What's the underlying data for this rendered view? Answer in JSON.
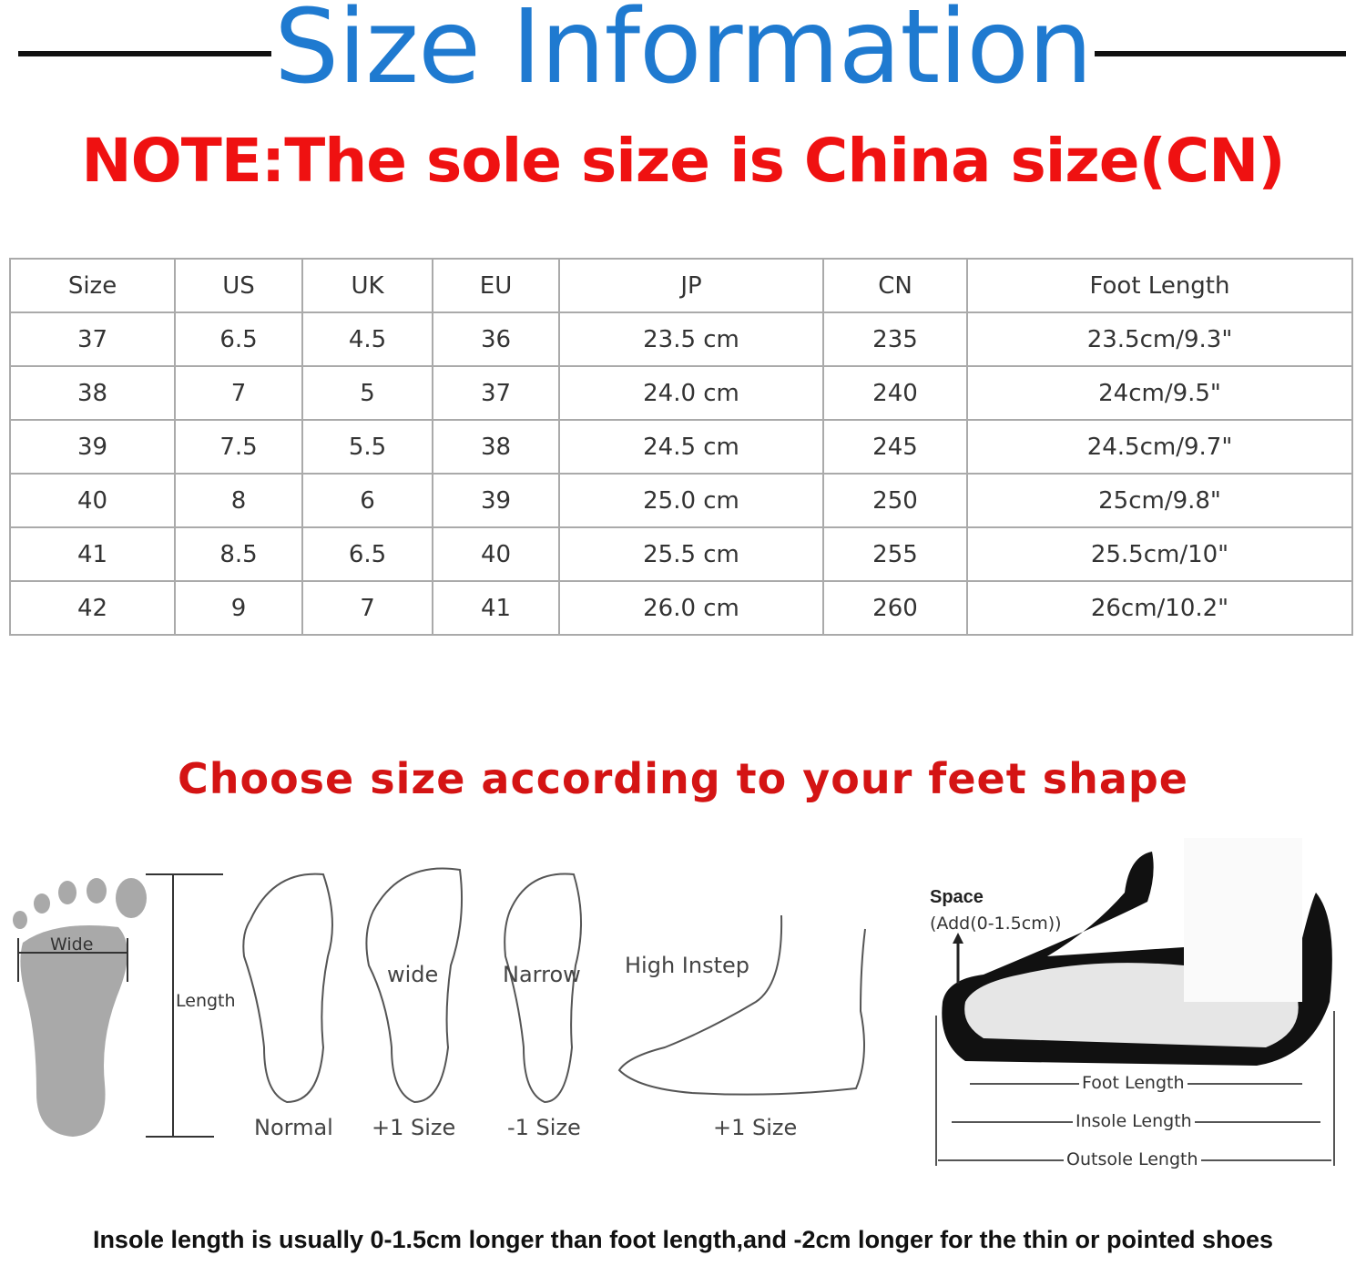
{
  "title": "Size Information",
  "note": "NOTE:The sole size is China size(CN)",
  "table": {
    "headers": [
      "Size",
      "US",
      "UK",
      "EU",
      "JP",
      "CN",
      "Foot Length"
    ],
    "rows": [
      [
        "37",
        "6.5",
        "4.5",
        "36",
        "23.5 cm",
        "235",
        "23.5cm/9.3\""
      ],
      [
        "38",
        "7",
        "5",
        "37",
        "24.0 cm",
        "240",
        "24cm/9.5\""
      ],
      [
        "39",
        "7.5",
        "5.5",
        "38",
        "24.5 cm",
        "245",
        "24.5cm/9.7\""
      ],
      [
        "40",
        "8",
        "6",
        "39",
        "25.0 cm",
        "250",
        "25cm/9.8\""
      ],
      [
        "41",
        "8.5",
        "6.5",
        "40",
        "25.5 cm",
        "255",
        "25.5cm/10\""
      ],
      [
        "42",
        "9",
        "7",
        "41",
        "26.0 cm",
        "260",
        "26cm/10.2\""
      ]
    ]
  },
  "choose": "Choose size according to your feet shape",
  "diagram": {
    "wide": "Wide",
    "length": "Length",
    "normal": "Normal",
    "wide_foot": "wide",
    "wide_size": "+1 Size",
    "narrow": "Narrow",
    "narrow_size": "-1 Size",
    "high_instep": "High Instep",
    "instep_size": "+1 Size",
    "space": "Space",
    "space_add": "(Add(0-1.5cm))",
    "foot_length": "Foot Length",
    "insole_length": "Insole Length",
    "outsole_length": "Outsole Length"
  },
  "footer": "Insole length is usually 0-1.5cm longer than foot length,and -2cm longer for the thin or pointed shoes",
  "colors": {
    "title": "#1f7ad0",
    "note": "#ef1111",
    "choose": "#d41414"
  }
}
